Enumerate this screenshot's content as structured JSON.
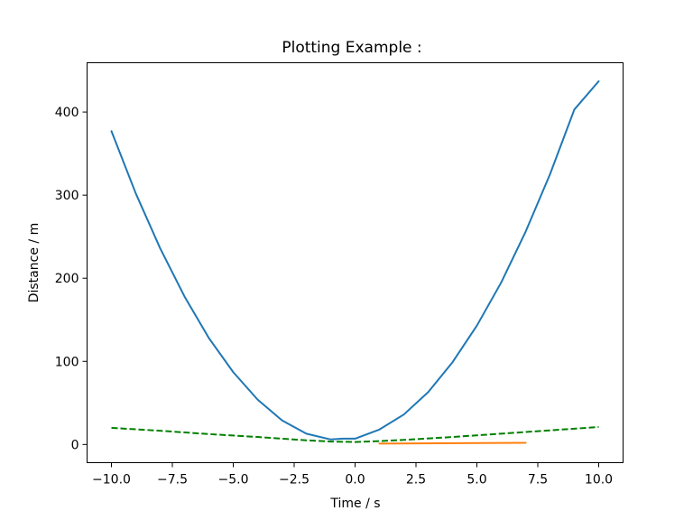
{
  "chart_data": {
    "type": "line",
    "title": "Plotting Example :",
    "xlabel": "Time / s",
    "ylabel": "Distance / m",
    "xlim": [
      -11,
      11
    ],
    "ylim": [
      -21.9,
      459.3
    ],
    "xticks": [
      -10.0,
      -7.5,
      -5.0,
      -2.5,
      0.0,
      2.5,
      5.0,
      7.5,
      10.0
    ],
    "xtick_labels": [
      "−10.0",
      "−7.5",
      "−5.0",
      "−2.5",
      "0.0",
      "2.5",
      "5.0",
      "7.5",
      "10.0"
    ],
    "yticks": [
      0,
      100,
      200,
      300,
      400
    ],
    "ytick_labels": [
      "0",
      "100",
      "200",
      "300",
      "400"
    ],
    "grid": false,
    "legend": "none",
    "series": [
      {
        "color": "#1f77b4",
        "style": "solid",
        "x": [
          -10,
          -9,
          -8,
          -7,
          -6,
          -5,
          -4,
          -3,
          -2,
          -1,
          -0.5,
          0,
          1,
          2,
          3,
          4,
          5,
          6,
          7,
          8,
          9,
          10
        ],
        "y": [
          377,
          302,
          236,
          178,
          128,
          87,
          54,
          29,
          13,
          6,
          7,
          7,
          18,
          36,
          63,
          99,
          143,
          195,
          256,
          325,
          403,
          437
        ]
      },
      {
        "color": "#ff7f0e",
        "style": "solid",
        "x": [
          1,
          7
        ],
        "y": [
          1,
          2
        ]
      },
      {
        "color": "#008000",
        "style": "dashed",
        "x": [
          -10,
          -8,
          -6,
          -4,
          -2,
          -1,
          0,
          1,
          2,
          4,
          6,
          8,
          10
        ],
        "y": [
          20,
          16.5,
          12.5,
          9,
          5,
          3.5,
          3,
          4,
          5.5,
          9,
          13,
          17,
          21
        ]
      }
    ]
  }
}
